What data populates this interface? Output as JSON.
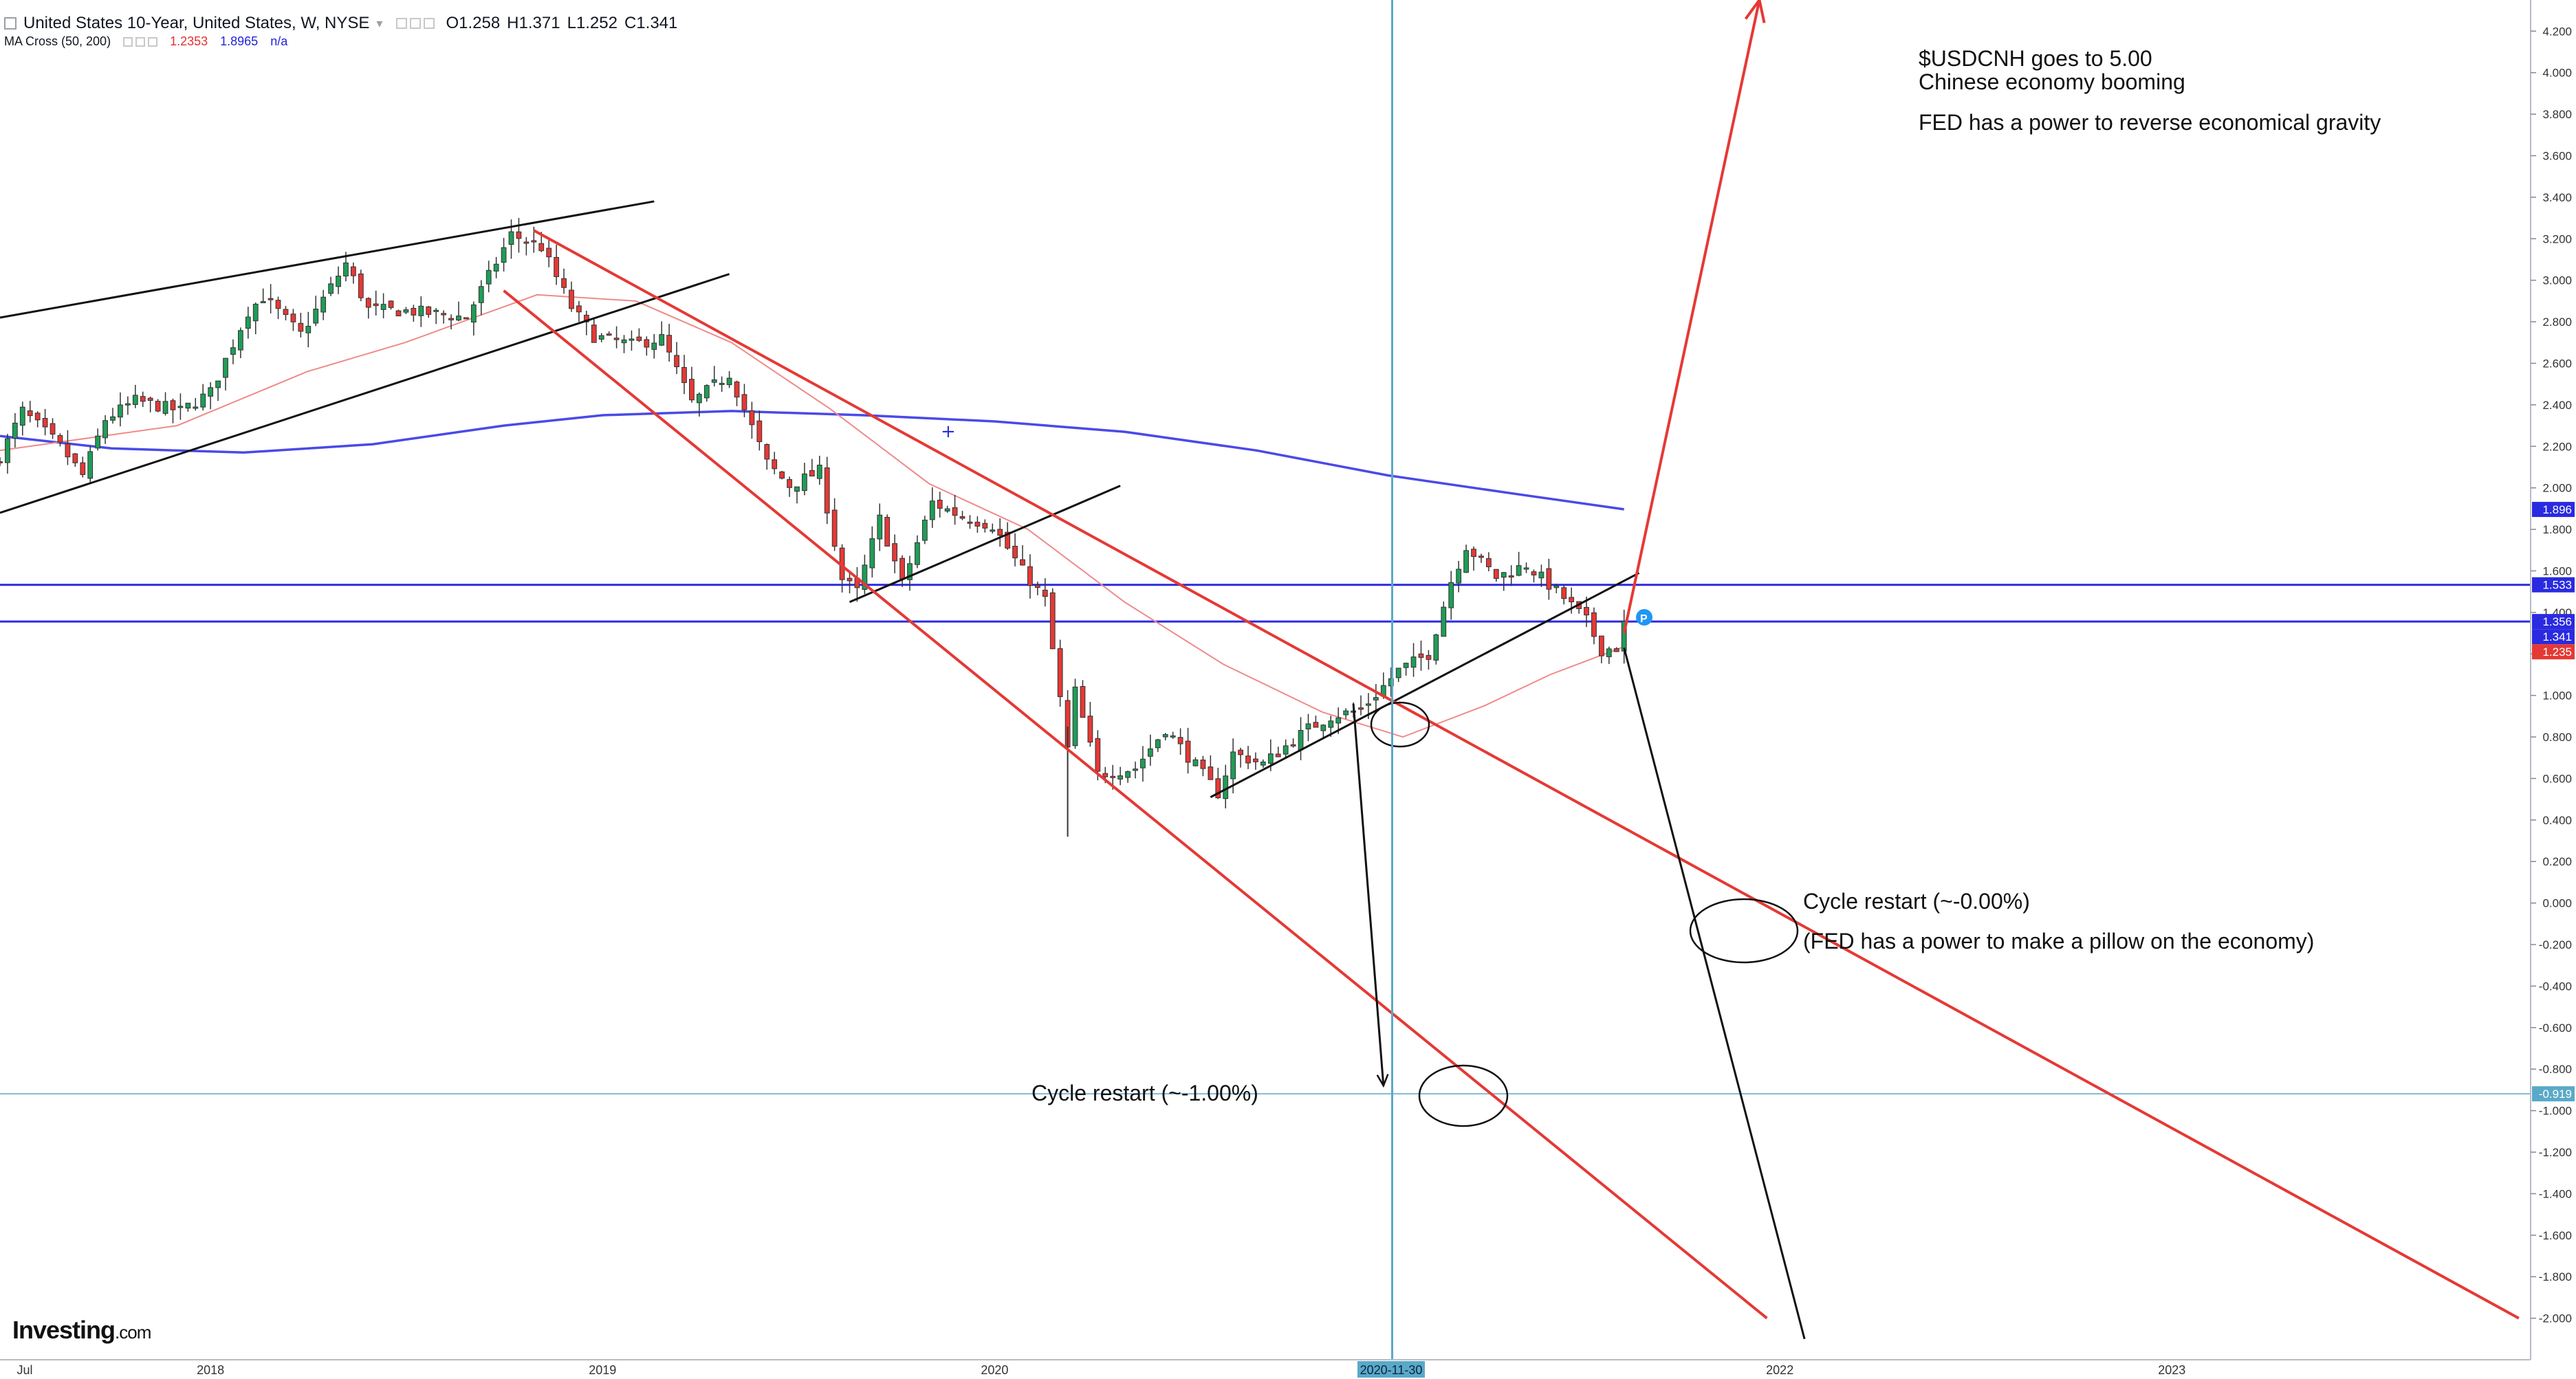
{
  "header": {
    "title": "United States 10-Year, United States, W, NYSE",
    "open": "O1.258",
    "high": "H1.371",
    "low": "L1.252",
    "close": "C1.341",
    "indicator_name": "MA Cross (50, 200)",
    "ma_fast_value": "1.2353",
    "ma_slow_value": "1.8965",
    "ma_extra_value": "n/a"
  },
  "annotations": {
    "usdcnh_line1": "$USDCNH goes to 5.00",
    "usdcnh_line2": "Chinese economy booming",
    "fed_line": "FED has a power to reverse economical gravity",
    "cycle_zero": "Cycle restart (~-0.00%)",
    "cycle_zero_note": "(FED has a power to make a pillow on the economy)",
    "cycle_minus1": "Cycle restart (~-1.00%)"
  },
  "watermark": {
    "brand": "Investing",
    "suffix": ".com"
  },
  "price_tags": [
    {
      "label": "1.896",
      "value": 1.896,
      "color": "#2a2ae0"
    },
    {
      "label": "1.533",
      "value": 1.533,
      "color": "#2a2ae0"
    },
    {
      "label": "1.356",
      "value": 1.356,
      "color": "#2a2ae0"
    },
    {
      "label": "1.341",
      "value": 1.341,
      "color": "#2a2ae0"
    },
    {
      "label": "1.235",
      "value": 1.235,
      "color": "#e53935"
    },
    {
      "label": "-0.919",
      "value": -0.919,
      "color": "#5aa9c9"
    }
  ],
  "crosshair_date": "2020-11-30",
  "chart_data": {
    "type": "candlestick",
    "title": "United States 10-Year, United States, W, NYSE",
    "y_range": [
      -2.2,
      4.35
    ],
    "y_ticks": [
      4.2,
      4.0,
      3.8,
      3.6,
      3.4,
      3.2,
      3.0,
      2.8,
      2.6,
      2.4,
      2.2,
      2.0,
      1.8,
      1.6,
      1.4,
      1.2,
      1.0,
      0.8,
      0.6,
      0.4,
      0.2,
      0.0,
      -0.2,
      -0.4,
      -0.6,
      -0.8,
      -1.0,
      -1.2,
      -1.4,
      -1.6,
      -1.8,
      -2.0
    ],
    "y_tick_labels": [
      "4.200",
      "4.000",
      "3.800",
      "3.600",
      "3.400",
      "3.200",
      "3.000",
      "2.800",
      "2.600",
      "2.400",
      "2.200",
      "2.000",
      "1.800",
      "1.600",
      "1.400",
      "1.200",
      "1.000",
      "0.800",
      "0.600",
      "0.400",
      "0.200",
      "0.000",
      "-0.200",
      "-0.400",
      "-0.600",
      "-0.800",
      "-1.000",
      "-1.200",
      "-1.400",
      "-1.600",
      "-1.800",
      "-2.000"
    ],
    "x_range": [
      "2017-06-19",
      "2023-12-01"
    ],
    "x_ticks": [
      {
        "label": "Jul",
        "date": "2017-07-01"
      },
      {
        "label": "2018",
        "date": "2018-01-01"
      },
      {
        "label": "2019",
        "date": "2019-01-01"
      },
      {
        "label": "2020",
        "date": "2020-01-01"
      },
      {
        "label": "2021",
        "date": "2021-01-01"
      },
      {
        "label": "2022",
        "date": "2022-01-01"
      },
      {
        "label": "2023",
        "date": "2023-01-01"
      }
    ],
    "anchors": [
      [
        "2017-06-19",
        2.15
      ],
      [
        "2017-07-10",
        2.37
      ],
      [
        "2017-08-14",
        2.2
      ],
      [
        "2017-09-04",
        2.06
      ],
      [
        "2017-09-25",
        2.33
      ],
      [
        "2017-10-23",
        2.42
      ],
      [
        "2017-12-04",
        2.37
      ],
      [
        "2018-01-01",
        2.46
      ],
      [
        "2018-02-05",
        2.85
      ],
      [
        "2018-02-19",
        2.92
      ],
      [
        "2018-03-26",
        2.74
      ],
      [
        "2018-05-07",
        3.08
      ],
      [
        "2018-05-28",
        2.86
      ],
      [
        "2018-07-09",
        2.85
      ],
      [
        "2018-08-27",
        2.82
      ],
      [
        "2018-10-08",
        3.22
      ],
      [
        "2018-11-05",
        3.16
      ],
      [
        "2018-12-03",
        2.87
      ],
      [
        "2018-12-24",
        2.73
      ],
      [
        "2019-01-28",
        2.69
      ],
      [
        "2019-02-25",
        2.72
      ],
      [
        "2019-03-25",
        2.41
      ],
      [
        "2019-04-29",
        2.55
      ],
      [
        "2019-06-03",
        2.12
      ],
      [
        "2019-06-24",
        2.01
      ],
      [
        "2019-07-22",
        2.08
      ],
      [
        "2019-08-12",
        1.56
      ],
      [
        "2019-08-26",
        1.5
      ],
      [
        "2019-09-16",
        1.85
      ],
      [
        "2019-10-07",
        1.54
      ],
      [
        "2019-11-04",
        1.93
      ],
      [
        "2019-12-02",
        1.86
      ],
      [
        "2019-12-30",
        1.82
      ],
      [
        "2020-01-27",
        1.6
      ],
      [
        "2020-02-17",
        1.46
      ],
      [
        "2020-03-09",
        0.74
      ],
      [
        "2020-03-16",
        1.02
      ],
      [
        "2020-04-06",
        0.62
      ],
      [
        "2020-05-11",
        0.65
      ],
      [
        "2020-06-08",
        0.84
      ],
      [
        "2020-07-27",
        0.53
      ],
      [
        "2020-08-10",
        0.72
      ],
      [
        "2020-09-07",
        0.67
      ],
      [
        "2020-10-19",
        0.84
      ],
      [
        "2020-11-09",
        0.9
      ],
      [
        "2020-12-07",
        0.93
      ],
      [
        "2021-01-11",
        1.12
      ],
      [
        "2021-02-08",
        1.2
      ],
      [
        "2021-03-01",
        1.55
      ],
      [
        "2021-03-15",
        1.72
      ],
      [
        "2021-04-12",
        1.57
      ],
      [
        "2021-05-10",
        1.63
      ],
      [
        "2021-06-14",
        1.47
      ],
      [
        "2021-07-05",
        1.36
      ],
      [
        "2021-07-19",
        1.22
      ],
      [
        "2021-08-02",
        1.23
      ],
      [
        "2021-08-09",
        1.34
      ]
    ],
    "ma_fast": [
      [
        "2017-06-19",
        2.18
      ],
      [
        "2017-12-01",
        2.3
      ],
      [
        "2018-04-01",
        2.56
      ],
      [
        "2018-07-01",
        2.7
      ],
      [
        "2018-11-01",
        2.93
      ],
      [
        "2019-02-01",
        2.9
      ],
      [
        "2019-05-01",
        2.7
      ],
      [
        "2019-08-01",
        2.38
      ],
      [
        "2019-11-01",
        2.02
      ],
      [
        "2020-02-01",
        1.8
      ],
      [
        "2020-05-01",
        1.45
      ],
      [
        "2020-08-01",
        1.15
      ],
      [
        "2020-11-01",
        0.92
      ],
      [
        "2021-01-15",
        0.8
      ],
      [
        "2021-04-01",
        0.95
      ],
      [
        "2021-06-01",
        1.1
      ],
      [
        "2021-08-09",
        1.235
      ]
    ],
    "ma_slow": [
      [
        "2017-06-19",
        2.25
      ],
      [
        "2017-10-01",
        2.19
      ],
      [
        "2018-02-01",
        2.17
      ],
      [
        "2018-06-01",
        2.21
      ],
      [
        "2018-10-01",
        2.3
      ],
      [
        "2019-01-01",
        2.35
      ],
      [
        "2019-05-01",
        2.37
      ],
      [
        "2019-09-01",
        2.35
      ],
      [
        "2020-01-01",
        2.32
      ],
      [
        "2020-05-01",
        2.27
      ],
      [
        "2020-09-01",
        2.18
      ],
      [
        "2021-01-01",
        2.06
      ],
      [
        "2021-05-01",
        1.97
      ],
      [
        "2021-08-09",
        1.8965
      ]
    ],
    "horizontal_lines": [
      {
        "value": 1.533,
        "color": "#2a2ae0"
      },
      {
        "value": 1.356,
        "color": "#2a2ae0"
      },
      {
        "value": -0.919,
        "color": "#5aa9c9"
      }
    ],
    "trend_lines": [
      {
        "color": "#111111",
        "from": [
          "2017-06-19",
          2.82
        ],
        "to": [
          "2019-02-18",
          3.38
        ]
      },
      {
        "color": "#111111",
        "from": [
          "2017-06-19",
          1.88
        ],
        "to": [
          "2019-04-29",
          3.03
        ]
      },
      {
        "color": "#111111",
        "from": [
          "2019-08-19",
          1.45
        ],
        "to": [
          "2020-04-27",
          2.01
        ]
      },
      {
        "color": "#111111",
        "from": [
          "2020-07-20",
          0.51
        ],
        "to": [
          "2021-08-23",
          1.59
        ]
      },
      {
        "color": "#e53935",
        "from": [
          "2018-10-29",
          3.24
        ],
        "to": [
          "2023-11-20",
          -2.0
        ]
      },
      {
        "color": "#e53935",
        "from": [
          "2018-10-01",
          2.95
        ],
        "to": [
          "2021-12-20",
          -2.0
        ]
      },
      {
        "color": "#111111",
        "from": [
          "2020-11-30",
          0.96
        ],
        "to": [
          "2020-12-28",
          -0.88
        ]
      },
      {
        "color": "#111111",
        "from": [
          "2021-08-09",
          1.23
        ],
        "to": [
          "2022-01-24",
          -2.1
        ]
      }
    ],
    "projection_arrow": {
      "color": "#e53935",
      "from": [
        "2021-08-09",
        1.3
      ],
      "to": [
        "2021-12-13",
        4.35
      ]
    }
  }
}
